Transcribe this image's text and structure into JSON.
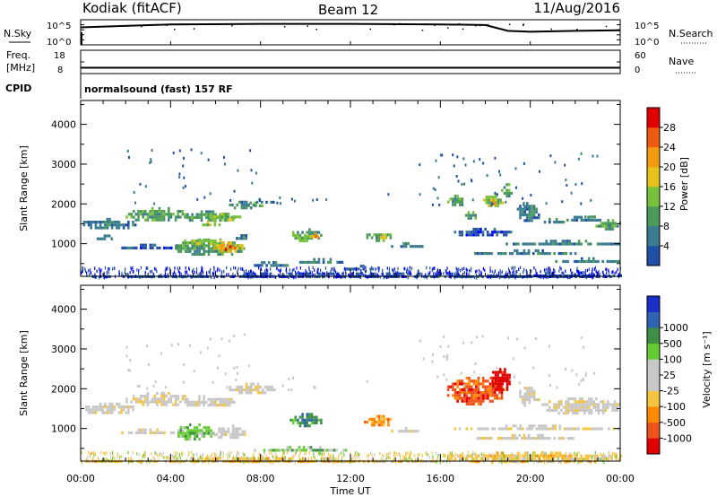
{
  "header": {
    "station": "Kodiak (fitACF)",
    "beam": "Beam 12",
    "date": "11/Aug/2016"
  },
  "panels": {
    "nsky": {
      "left_label": "N.Sky",
      "right_label": "N.Search",
      "right_style": "dotted",
      "tick_high": "10^5",
      "tick_low": "10^0",
      "note": "solid trace: N.Sky; dotted trace: N.Search"
    },
    "freq": {
      "left_label_1": "Freq.",
      "left_label_2": "[MHz]",
      "left_ticks": [
        "18",
        "8"
      ],
      "right_label": "Nave",
      "right_style": "dotted",
      "right_ticks": [
        "60",
        "0"
      ]
    },
    "cpid": {
      "label": "CPID",
      "text": "normalsound (fast) 157 RF"
    }
  },
  "colors": {
    "power": [
      "#0000ff",
      "#1f4fa6",
      "#3a7b8f",
      "#4c9a5a",
      "#77c23a",
      "#e6c21a",
      "#f29a12",
      "#ee5a10",
      "#e00000"
    ],
    "velocity": [
      "#e00000",
      "#f0521e",
      "#ff8a00",
      "#f5c542",
      "#c8c8c8",
      "#c8c8c8",
      "#66cc33",
      "#3d8f46",
      "#2f62b0",
      "#1a2fc8"
    ]
  },
  "chart_data": [
    {
      "type": "line",
      "panel": "nsky",
      "x_axis": "Time UT",
      "xlim": [
        "00:00",
        "24:00"
      ],
      "ylim_left": [
        1,
        100000
      ],
      "y_scale": "log",
      "series": [
        {
          "x": [
            "00:00",
            "04:00",
            "08:00",
            "12:00",
            "16:00",
            "18:00",
            "19:00",
            "20:00",
            "22:00",
            "24:00"
          ],
          "values": [
            3000,
            12000,
            15000,
            15000,
            12000,
            9000,
            600,
            400,
            600,
            800
          ]
        }
      ]
    },
    {
      "type": "line",
      "panel": "freq",
      "ylabel": "Freq. [MHz]",
      "ylim_left": [
        8,
        18
      ],
      "ylim_right": [
        0,
        60
      ],
      "series": [
        {
          "x": [
            "00:00",
            "24:00"
          ],
          "values": [
            10.5,
            10.5
          ]
        }
      ]
    },
    {
      "type": "heatmap",
      "panel": "power",
      "xlabel": "",
      "ylabel": "Slant Range [km]",
      "x_ticks": [
        "00:00",
        "04:00",
        "08:00",
        "12:00",
        "16:00",
        "20:00",
        "00:00"
      ],
      "xlim": [
        0,
        24
      ],
      "ylim": [
        180,
        4600
      ],
      "y_ticks": [
        "1000",
        "2000",
        "3000",
        "4000"
      ],
      "y_tick_values": [
        1000,
        2000,
        3000,
        4000
      ],
      "colorbar_label": "Power [dB]",
      "colorbar_ticks": [
        "4",
        "8",
        "12",
        "16",
        "20",
        "24",
        "28"
      ],
      "colorbar_min": 0,
      "colorbar_max": 32,
      "regions": [
        {
          "t": [
            0.0,
            2.4
          ],
          "r": [
            1400,
            1650
          ],
          "level": 2
        },
        {
          "t": [
            2.0,
            4.7
          ],
          "r": [
            1600,
            1920
          ],
          "level": 3
        },
        {
          "t": [
            4.5,
            6.8
          ],
          "r": [
            1580,
            1840
          ],
          "level": 3
        },
        {
          "t": [
            5.8,
            7.1
          ],
          "r": [
            1620,
            1780
          ],
          "level": 4
        },
        {
          "t": [
            5.3,
            6.2
          ],
          "r": [
            1480,
            1580
          ],
          "level": 4
        },
        {
          "t": [
            6.6,
            7.8
          ],
          "r": [
            1920,
            2080
          ],
          "level": 2
        },
        {
          "t": [
            7.2,
            8.1
          ],
          "r": [
            1950,
            2060
          ],
          "level": 3
        },
        {
          "t": [
            7.6,
            8.6
          ],
          "r": [
            2030,
            2150
          ],
          "level": 2
        },
        {
          "t": [
            0.4,
            1.6
          ],
          "r": [
            1120,
            1230
          ],
          "level": 2
        },
        {
          "t": [
            1.6,
            4.4
          ],
          "r": [
            900,
            1000
          ],
          "level": 1
        },
        {
          "t": [
            4.2,
            7.3
          ],
          "r": [
            740,
            1130
          ],
          "level": 3
        },
        {
          "t": [
            4.6,
            6.4
          ],
          "r": [
            1000,
            1180
          ],
          "level": 4
        },
        {
          "t": [
            5.8,
            7.2
          ],
          "r": [
            820,
            1060
          ],
          "level": 5
        },
        {
          "t": [
            6.0,
            7.0
          ],
          "r": [
            860,
            1000
          ],
          "level": 6
        },
        {
          "t": [
            6.3,
            6.8
          ],
          "r": [
            880,
            960
          ],
          "level": 8
        },
        {
          "t": [
            6.9,
            7.5
          ],
          "r": [
            1120,
            1240
          ],
          "level": 2
        },
        {
          "t": [
            7.5,
            9.2
          ],
          "r": [
            420,
            560
          ],
          "level": 2
        },
        {
          "t": [
            9.2,
            12.0
          ],
          "r": [
            560,
            640
          ],
          "level": 2
        },
        {
          "t": [
            11.6,
            13.0
          ],
          "r": [
            330,
            470
          ],
          "level": 2
        },
        {
          "t": [
            9.6,
            10.1
          ],
          "r": [
            1080,
            1180
          ],
          "level": 4
        },
        {
          "t": [
            9.3,
            10.7
          ],
          "r": [
            1140,
            1390
          ],
          "level": 3
        },
        {
          "t": [
            9.9,
            10.4
          ],
          "r": [
            1180,
            1290
          ],
          "level": 5
        },
        {
          "t": [
            10.2,
            10.6
          ],
          "r": [
            1190,
            1280
          ],
          "level": 6
        },
        {
          "t": [
            12.7,
            13.8
          ],
          "r": [
            1110,
            1330
          ],
          "level": 3
        },
        {
          "t": [
            13.1,
            13.6
          ],
          "r": [
            1170,
            1260
          ],
          "level": 5
        },
        {
          "t": [
            13.8,
            15.2
          ],
          "r": [
            920,
            1040
          ],
          "level": 2
        },
        {
          "t": [
            16.3,
            17.0
          ],
          "r": [
            1950,
            2230
          ],
          "level": 3
        },
        {
          "t": [
            17.0,
            17.6
          ],
          "r": [
            1650,
            1820
          ],
          "level": 3
        },
        {
          "t": [
            17.9,
            18.8
          ],
          "r": [
            1950,
            2280
          ],
          "level": 4
        },
        {
          "t": [
            18.2,
            18.5
          ],
          "r": [
            1960,
            2100
          ],
          "level": 6
        },
        {
          "t": [
            18.7,
            19.2
          ],
          "r": [
            2230,
            2520
          ],
          "level": 3
        },
        {
          "t": [
            19.4,
            20.4
          ],
          "r": [
            1600,
            2050
          ],
          "level": 2
        },
        {
          "t": [
            20.5,
            21.5
          ],
          "r": [
            1520,
            1650
          ],
          "level": 2
        },
        {
          "t": [
            21.4,
            23.1
          ],
          "r": [
            1600,
            1700
          ],
          "level": 2
        },
        {
          "t": [
            22.3,
            23.1
          ],
          "r": [
            1680,
            1780
          ],
          "level": 3
        },
        {
          "t": [
            22.9,
            24.0
          ],
          "r": [
            1400,
            1620
          ],
          "level": 3
        },
        {
          "t": [
            16.5,
            19.2
          ],
          "r": [
            1220,
            1400
          ],
          "level": 1
        },
        {
          "t": [
            18.8,
            24.0
          ],
          "r": [
            1000,
            1100
          ],
          "level": 2
        },
        {
          "t": [
            17.5,
            22.0
          ],
          "r": [
            740,
            860
          ],
          "level": 2
        },
        {
          "t": [
            21.0,
            24.0
          ],
          "r": [
            560,
            660
          ],
          "level": 2
        },
        {
          "t": [
            19.0,
            24.0
          ],
          "r": [
            180,
            300
          ],
          "level": 1
        },
        {
          "t": [
            0.0,
            24.0
          ],
          "r": [
            180,
            280
          ],
          "level": 1
        }
      ],
      "scatter_density": 0.55
    },
    {
      "type": "heatmap",
      "panel": "velocity",
      "xlabel": "Time UT",
      "ylabel": "Slant Range [km]",
      "x_ticks": [
        "00:00",
        "04:00",
        "08:00",
        "12:00",
        "16:00",
        "20:00",
        "00:00"
      ],
      "xlim": [
        0,
        24
      ],
      "ylim": [
        180,
        4600
      ],
      "y_ticks": [
        "1000",
        "2000",
        "3000",
        "4000"
      ],
      "y_tick_values": [
        1000,
        2000,
        3000,
        4000
      ],
      "colorbar_label": "Velocity [m s⁻¹]",
      "colorbar_ticks": [
        "-1000",
        "-500",
        "-100",
        "-25",
        "25",
        "100",
        "500",
        "1000"
      ],
      "regions": [
        {
          "t": [
            0.0,
            2.4
          ],
          "r": [
            1400,
            1650
          ],
          "level": 4
        },
        {
          "t": [
            2.0,
            4.7
          ],
          "r": [
            1600,
            1920
          ],
          "level": 4
        },
        {
          "t": [
            4.5,
            6.8
          ],
          "r": [
            1580,
            1840
          ],
          "level": 4
        },
        {
          "t": [
            6.6,
            8.6
          ],
          "r": [
            1920,
            2150
          ],
          "level": 4
        },
        {
          "t": [
            1.6,
            4.4
          ],
          "r": [
            900,
            1000
          ],
          "level": 4
        },
        {
          "t": [
            4.2,
            5.9
          ],
          "r": [
            740,
            1130
          ],
          "level": 6
        },
        {
          "t": [
            5.9,
            7.3
          ],
          "r": [
            780,
            1100
          ],
          "level": 4
        },
        {
          "t": [
            7.5,
            12.0
          ],
          "r": [
            420,
            560
          ],
          "level": 6
        },
        {
          "t": [
            9.3,
            10.7
          ],
          "r": [
            1100,
            1390
          ],
          "level": 7
        },
        {
          "t": [
            12.6,
            13.9
          ],
          "r": [
            1110,
            1340
          ],
          "level": 2
        },
        {
          "t": [
            13.8,
            15.2
          ],
          "r": [
            920,
            1040
          ],
          "level": 4
        },
        {
          "t": [
            16.3,
            18.8
          ],
          "r": [
            1650,
            2300
          ],
          "level": 1
        },
        {
          "t": [
            18.2,
            19.1
          ],
          "r": [
            1950,
            2520
          ],
          "level": 0
        },
        {
          "t": [
            19.4,
            20.4
          ],
          "r": [
            1600,
            2050
          ],
          "level": 4
        },
        {
          "t": [
            20.5,
            24.0
          ],
          "r": [
            1400,
            1780
          ],
          "level": 4
        },
        {
          "t": [
            16.5,
            24.0
          ],
          "r": [
            1000,
            1100
          ],
          "level": 4
        },
        {
          "t": [
            17.5,
            22.0
          ],
          "r": [
            740,
            860
          ],
          "level": 4
        },
        {
          "t": [
            16.0,
            24.0
          ],
          "r": [
            180,
            420
          ],
          "level": 3
        },
        {
          "t": [
            0.0,
            16.0
          ],
          "r": [
            180,
            280
          ],
          "level": 3
        }
      ],
      "scatter_density": 0.55
    }
  ]
}
